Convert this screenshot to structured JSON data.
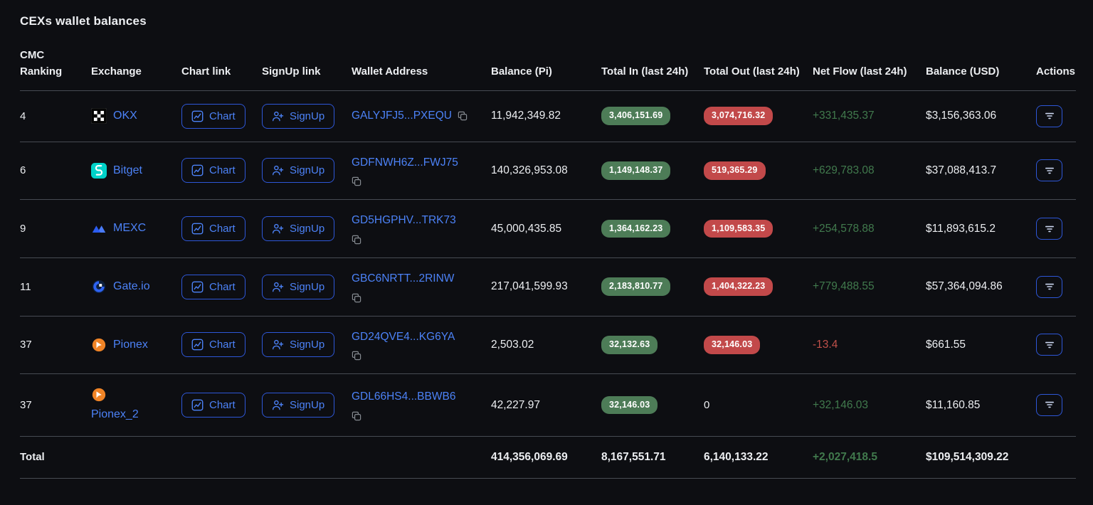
{
  "page": {
    "title": "CEXs wallet balances"
  },
  "colors": {
    "link_blue": "#4c82f7",
    "positive_green": "#417a4d",
    "negative_red": "#c0504a",
    "badge_green_bg": "#4d7c57",
    "badge_red_bg": "#c2494a",
    "button_border_blue": "#2e57d8"
  },
  "table": {
    "columns": [
      "CMC Ranking",
      "Exchange",
      "Chart link",
      "SignUp link",
      "Wallet Address",
      "Balance (Pi)",
      "Total In (last 24h)",
      "Total Out (last 24h)",
      "Net Flow (last 24h)",
      "Balance (USD)",
      "Actions"
    ],
    "chart_label": "Chart",
    "signup_label": "SignUp",
    "rows": [
      {
        "ranking": "4",
        "exchange": "OKX",
        "logo": "okx",
        "wallet": "GALYJFJ5...PXEQU",
        "copy_inline": true,
        "balance_pi": "11,942,349.82",
        "total_in": "3,406,151.69",
        "total_out": "3,074,716.32",
        "net_flow": "+331,435.37",
        "balance_usd": "$3,156,363.06"
      },
      {
        "ranking": "6",
        "exchange": "Bitget",
        "logo": "bitget",
        "wallet": "GDFNWH6Z...FWJ75",
        "copy_inline": false,
        "balance_pi": "140,326,953.08",
        "total_in": "1,149,148.37",
        "total_out": "519,365.29",
        "net_flow": "+629,783.08",
        "balance_usd": "$37,088,413.7"
      },
      {
        "ranking": "9",
        "exchange": "MEXC",
        "logo": "mexc",
        "wallet": "GD5HGPHV...TRK73",
        "copy_inline": false,
        "balance_pi": "45,000,435.85",
        "total_in": "1,364,162.23",
        "total_out": "1,109,583.35",
        "net_flow": "+254,578.88",
        "balance_usd": "$11,893,615.2"
      },
      {
        "ranking": "11",
        "exchange": "Gate.io",
        "logo": "gateio",
        "wallet": "GBC6NRTT...2RINW",
        "copy_inline": false,
        "balance_pi": "217,041,599.93",
        "total_in": "2,183,810.77",
        "total_out": "1,404,322.23",
        "net_flow": "+779,488.55",
        "balance_usd": "$57,364,094.86"
      },
      {
        "ranking": "37",
        "exchange": "Pionex",
        "logo": "pionex",
        "wallet": "GD24QVE4...KG6YA",
        "copy_inline": false,
        "balance_pi": "2,503.02",
        "total_in": "32,132.63",
        "total_out": "32,146.03",
        "net_flow": "-13.4",
        "balance_usd": "$661.55"
      },
      {
        "ranking": "37",
        "exchange": "Pionex_2",
        "logo": "pionex",
        "wallet": "GDL66HS4...BBWB6",
        "copy_inline": false,
        "balance_pi": "42,227.97",
        "total_in": "32,146.03",
        "total_out": "0",
        "net_flow": "+32,146.03",
        "balance_usd": "$11,160.85"
      }
    ],
    "total": {
      "label": "Total",
      "balance_pi": "414,356,069.69",
      "total_in": "8,167,551.71",
      "total_out": "6,140,133.22",
      "net_flow": "+2,027,418.5",
      "balance_usd": "$109,514,309.22"
    }
  }
}
